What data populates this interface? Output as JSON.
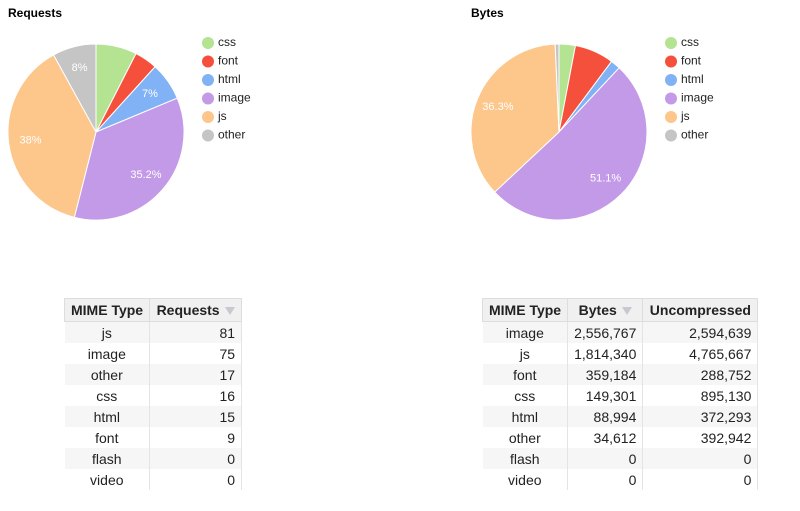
{
  "chart_data": [
    {
      "type": "pie",
      "title": "Requests",
      "categories": [
        "css",
        "font",
        "html",
        "image",
        "js",
        "other"
      ],
      "colors": [
        "#b4e392",
        "#f5503c",
        "#80b2f5",
        "#c39ae8",
        "#fdc68b",
        "#c5c5c5"
      ],
      "values": [
        7.5,
        4.2,
        7,
        35.2,
        38,
        8
      ],
      "value_labels": [
        null,
        null,
        "7%",
        "35.2%",
        "38%",
        "8%"
      ],
      "legend": "right"
    },
    {
      "type": "pie",
      "title": "Bytes",
      "categories": [
        "css",
        "font",
        "html",
        "image",
        "js",
        "other"
      ],
      "colors": [
        "#b4e392",
        "#f5503c",
        "#80b2f5",
        "#c39ae8",
        "#fdc68b",
        "#c5c5c5"
      ],
      "values": [
        3.0,
        7.2,
        1.8,
        51.1,
        36.3,
        0.7
      ],
      "value_labels": [
        null,
        null,
        null,
        "51.1%",
        "36.3%",
        null
      ],
      "legend": "right"
    }
  ],
  "tables": [
    {
      "columns": [
        "MIME Type",
        "Requests"
      ],
      "sorted_column": 1,
      "rows": [
        [
          "js",
          81
        ],
        [
          "image",
          75
        ],
        [
          "other",
          17
        ],
        [
          "css",
          16
        ],
        [
          "html",
          15
        ],
        [
          "font",
          9
        ],
        [
          "flash",
          0
        ],
        [
          "video",
          0
        ]
      ]
    },
    {
      "columns": [
        "MIME Type",
        "Bytes",
        "Uncompressed"
      ],
      "sorted_column": 1,
      "rows": [
        [
          "image",
          "2,556,767",
          "2,594,639"
        ],
        [
          "js",
          "1,814,340",
          "4,765,667"
        ],
        [
          "font",
          "359,184",
          "288,752"
        ],
        [
          "css",
          "149,301",
          "895,130"
        ],
        [
          "html",
          "88,994",
          "372,293"
        ],
        [
          "other",
          "34,612",
          "392,942"
        ],
        [
          "flash",
          0,
          0
        ],
        [
          "video",
          0,
          0
        ]
      ]
    }
  ]
}
